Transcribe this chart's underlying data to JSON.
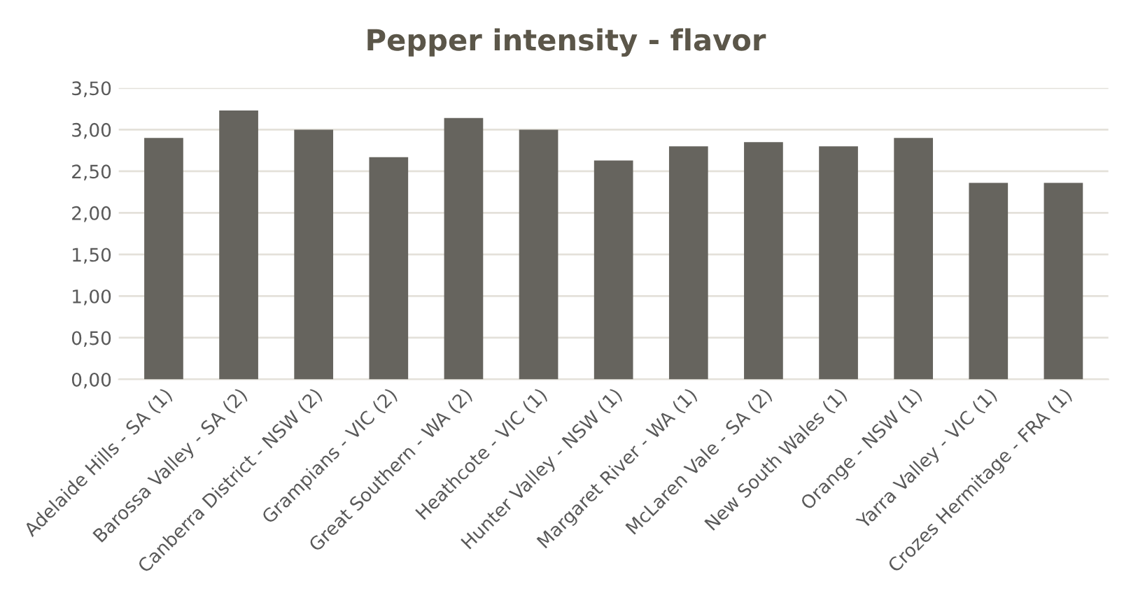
{
  "chart_data": {
    "type": "bar",
    "title": "Pepper intensity - flavor",
    "categories": [
      "Adelaide Hills - SA (1)",
      "Barossa Valley - SA (2)",
      "Canberra District - NSW (2)",
      "Grampians - VIC (2)",
      "Great Southern - WA (2)",
      "Heathcote - VIC (1)",
      "Hunter Valley - NSW (1)",
      "Margaret River - WA (1)",
      "McLaren Vale - SA (2)",
      "New South Wales (1)",
      "Orange - NSW (1)",
      "Yarra Valley - VIC (1)",
      "Crozes Hermitage - FRA (1)"
    ],
    "values": [
      2.9,
      3.23,
      3.0,
      2.67,
      3.14,
      3.0,
      2.63,
      2.8,
      2.85,
      2.8,
      2.9,
      2.36,
      2.36
    ],
    "color": "#66645e",
    "ylim": [
      0,
      3.5
    ],
    "yticks": [
      {
        "value": 0,
        "label": "0,00"
      },
      {
        "value": 0.5,
        "label": "0,50"
      },
      {
        "value": 1,
        "label": "1,00"
      },
      {
        "value": 1.5,
        "label": "1,50"
      },
      {
        "value": 2,
        "label": "2,00"
      },
      {
        "value": 2.5,
        "label": "2,50"
      },
      {
        "value": 3,
        "label": "3,00"
      },
      {
        "value": 3.5,
        "label": "3,50"
      }
    ],
    "grid": "y"
  }
}
